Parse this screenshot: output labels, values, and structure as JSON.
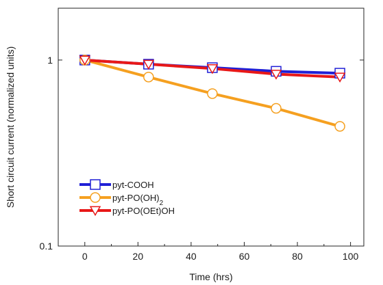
{
  "chart_data": {
    "type": "line",
    "title": "",
    "xlabel": "Time (hrs)",
    "ylabel": "Short circuit current (normalized units)",
    "xlim": [
      -10,
      105
    ],
    "ylim": [
      0.1,
      1.9
    ],
    "y_scale": "log",
    "x_ticks": [
      0,
      20,
      40,
      60,
      80,
      100
    ],
    "x_tick_labels": [
      "0",
      "20",
      "40",
      "60",
      "80",
      "100"
    ],
    "y_ticks": [
      0.1,
      1
    ],
    "y_tick_labels": [
      "0.1",
      "1"
    ],
    "grid": false,
    "legend_position": "bottom-left",
    "series": [
      {
        "name": "pyt-COOH",
        "color": "#1f1fd6",
        "marker": "square",
        "x": [
          0,
          24,
          48,
          72,
          96
        ],
        "y": [
          1.0,
          0.95,
          0.91,
          0.87,
          0.85
        ]
      },
      {
        "name": "pyt-PO(OH)",
        "name_subscript": "2",
        "color": "#f5a020",
        "marker": "circle",
        "x": [
          0,
          24,
          48,
          72,
          96
        ],
        "y": [
          1.0,
          0.81,
          0.66,
          0.55,
          0.44
        ]
      },
      {
        "name": "pyt-PO(OEt)OH",
        "color": "#e81818",
        "marker": "triangle-down",
        "x": [
          0,
          24,
          48,
          72,
          96
        ],
        "y": [
          1.0,
          0.95,
          0.9,
          0.84,
          0.81
        ]
      }
    ]
  }
}
